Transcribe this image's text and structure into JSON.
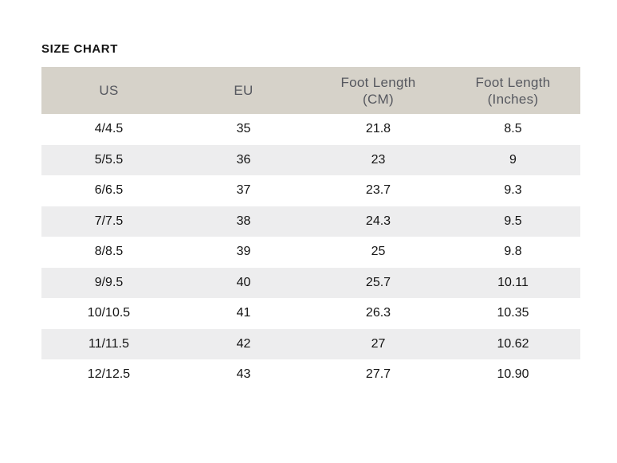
{
  "page": {
    "title": "SIZE CHART"
  },
  "colors": {
    "header_background": "#d6d2c9",
    "header_text": "#56585f",
    "row_alt_background": "#ededee",
    "body_text": "#141414",
    "title_text": "#131313",
    "page_background": "#ffffff"
  },
  "table": {
    "columns": [
      {
        "key": "us",
        "label": "US"
      },
      {
        "key": "eu",
        "label": "EU"
      },
      {
        "key": "foot_length_cm",
        "label": "Foot Length\n(CM)"
      },
      {
        "key": "foot_length_inches",
        "label": "Foot Length\n(Inches)"
      }
    ],
    "rows": [
      [
        "4/4.5",
        "35",
        "21.8",
        "8.5"
      ],
      [
        "5/5.5",
        "36",
        "23",
        "9"
      ],
      [
        "6/6.5",
        "37",
        "23.7",
        "9.3"
      ],
      [
        "7/7.5",
        "38",
        "24.3",
        "9.5"
      ],
      [
        "8/8.5",
        "39",
        "25",
        "9.8"
      ],
      [
        "9/9.5",
        "40",
        "25.7",
        "10.11"
      ],
      [
        "10/10.5",
        "41",
        "26.3",
        "10.35"
      ],
      [
        "11/11.5",
        "42",
        "27",
        "10.62"
      ],
      [
        "12/12.5",
        "43",
        "27.7",
        "10.90"
      ]
    ]
  }
}
